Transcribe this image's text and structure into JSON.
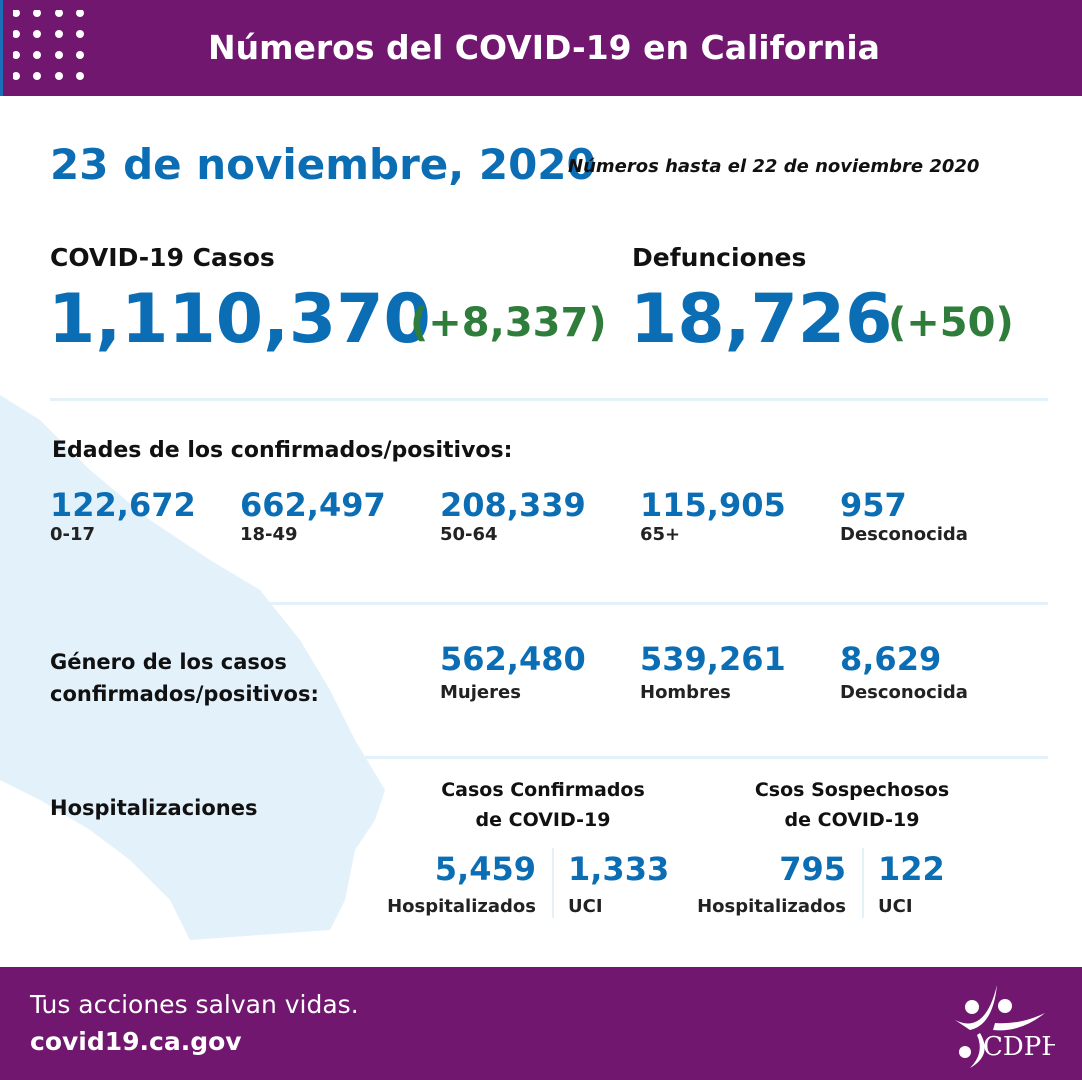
{
  "header": {
    "title": "Números del COVID-19 en California"
  },
  "date": "23 de noviembre, 2020",
  "as_of": "Números hasta el 22 de noviembre 2020",
  "cases": {
    "label": "COVID-19 Casos",
    "total": "1,110,370",
    "change": "(+8,337)"
  },
  "deaths": {
    "label": "Defunciones",
    "total": "18,726",
    "change": "(+50)"
  },
  "ages": {
    "heading": "Edades de los confirmados/positivos:",
    "items": [
      {
        "value": "122,672",
        "label": "0-17"
      },
      {
        "value": "662,497",
        "label": "18-49"
      },
      {
        "value": "208,339",
        "label": "50-64"
      },
      {
        "value": "115,905",
        "label": "65+"
      },
      {
        "value": "957",
        "label": "Desconocida"
      }
    ]
  },
  "gender": {
    "heading_line1": "Género de los casos",
    "heading_line2": "confirmados/positivos:",
    "items": [
      {
        "value": "562,480",
        "label": "Mujeres"
      },
      {
        "value": "539,261",
        "label": "Hombres"
      },
      {
        "value": "8,629",
        "label": "Desconocida"
      }
    ]
  },
  "hospital": {
    "heading": "Hospitalizaciones",
    "confirmed": {
      "title_line1": "Casos Confirmados",
      "title_line2": "de COVID-19",
      "hospitalized": "5,459",
      "hospitalized_label": "Hospitalizados",
      "icu": "1,333",
      "icu_label": "UCI"
    },
    "suspected": {
      "title_line1": "Csos Sospechosos",
      "title_line2": "de COVID-19",
      "hospitalized": "795",
      "hospitalized_label": "Hospitalizados",
      "icu": "122",
      "icu_label": "UCI"
    }
  },
  "footer": {
    "tagline": "Tus acciones salvan vidas.",
    "url": "covid19.ca.gov",
    "logo_text": "CDPH"
  },
  "colors": {
    "purple": "#72176f",
    "blue": "#0b6db3",
    "green": "#2e7d3a",
    "map": "#e3f1fb"
  }
}
